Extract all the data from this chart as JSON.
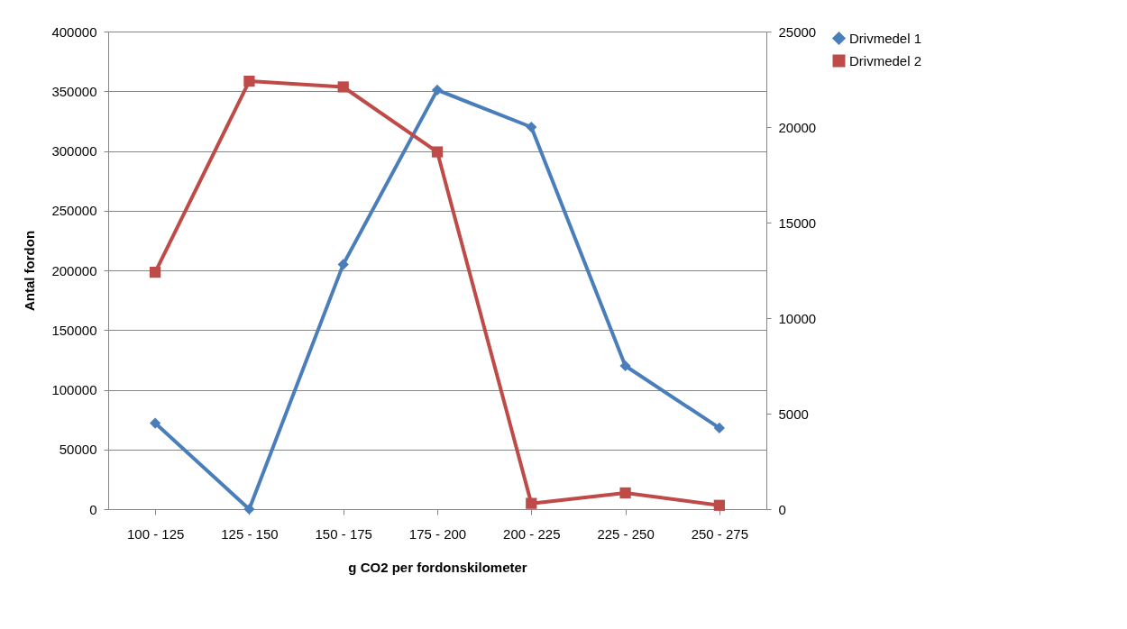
{
  "chart_data": {
    "type": "line",
    "xlabel": "g CO2 per fordonskilometer",
    "ylabel": "Antal fordon",
    "categories": [
      "100 - 125",
      "125 - 150",
      "150 - 175",
      "175 - 200",
      "200 - 225",
      "225 - 250",
      "250 - 275"
    ],
    "series": [
      {
        "name": "Drivmedel 1",
        "color": "#4a7ebb",
        "marker": "diamond",
        "values": [
          72000,
          0,
          205000,
          351000,
          320000,
          120000,
          68000
        ]
      },
      {
        "name": "Drivmedel 2",
        "color": "#be4b48",
        "marker": "square",
        "axis": "y2",
        "values": [
          12400,
          22400,
          22100,
          18700,
          300,
          850,
          200
        ]
      }
    ],
    "ylim": [
      0,
      400000
    ],
    "yticks": [
      0,
      50000,
      100000,
      150000,
      200000,
      250000,
      300000,
      350000,
      400000
    ],
    "y2lim": [
      0,
      25000
    ],
    "y2ticks": [
      0,
      5000,
      10000,
      15000,
      20000,
      25000
    ],
    "grid": "y",
    "legend": "right",
    "line_style": "solid"
  }
}
